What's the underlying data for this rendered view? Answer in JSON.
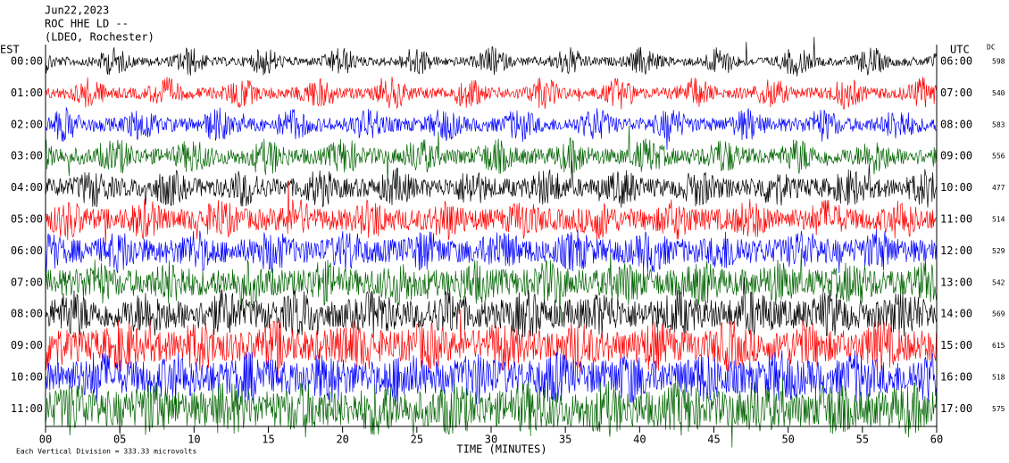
{
  "chart_data": {
    "type": "helicorder",
    "title_lines": [
      "Jun22,2023",
      "ROC HHE LD --",
      "(LDEO, Rochester)"
    ],
    "left_axis_label": "EST",
    "right_axis_label": "UTC",
    "dc_label": "DC",
    "xlabel": "TIME (MINUTES)",
    "footer": "Each Vertical Division =  333.33 microvolts",
    "xlim": [
      0,
      60
    ],
    "xticks": [
      {
        "value": 0,
        "label": "00"
      },
      {
        "value": 5,
        "label": "05"
      },
      10,
      15,
      20,
      25,
      30,
      35,
      40,
      45,
      50,
      55,
      60
    ],
    "rows": [
      {
        "est": "00:00",
        "utc": "06:00",
        "dc": 598,
        "color": "#000000"
      },
      {
        "est": "01:00",
        "utc": "07:00",
        "dc": 540,
        "color": "#ff0000"
      },
      {
        "est": "02:00",
        "utc": "08:00",
        "dc": 583,
        "color": "#0000ff"
      },
      {
        "est": "03:00",
        "utc": "09:00",
        "dc": 556,
        "color": "#006400"
      },
      {
        "est": "04:00",
        "utc": "10:00",
        "dc": 477,
        "color": "#000000"
      },
      {
        "est": "05:00",
        "utc": "11:00",
        "dc": 514,
        "color": "#ff0000"
      },
      {
        "est": "06:00",
        "utc": "12:00",
        "dc": 529,
        "color": "#0000ff"
      },
      {
        "est": "07:00",
        "utc": "13:00",
        "dc": 542,
        "color": "#006400"
      },
      {
        "est": "08:00",
        "utc": "14:00",
        "dc": 569,
        "color": "#000000"
      },
      {
        "est": "09:00",
        "utc": "15:00",
        "dc": 615,
        "color": "#ff0000"
      },
      {
        "est": "10:00",
        "utc": "16:00",
        "dc": 518,
        "color": "#0000ff"
      },
      {
        "est": "11:00",
        "utc": "17:00",
        "dc": 575,
        "color": "#006400"
      }
    ]
  }
}
